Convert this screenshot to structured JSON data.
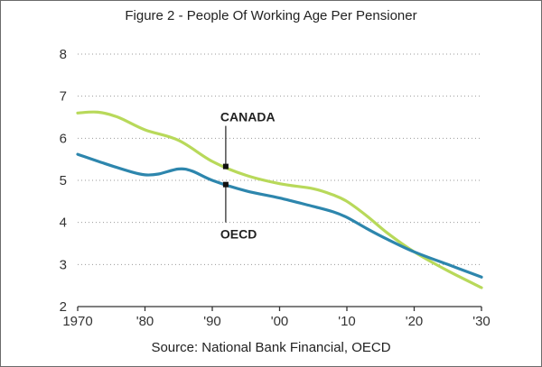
{
  "figure": {
    "title": "Figure 2 - People Of Working Age Per Pensioner",
    "source": "Source: National Bank Financial, OECD"
  },
  "chart_data": {
    "type": "line",
    "title": "Figure 2 - People Of Working Age Per Pensioner",
    "xlabel": "",
    "ylabel": "",
    "xlim": [
      1970,
      2030
    ],
    "ylim": [
      2,
      8
    ],
    "grid": true,
    "x_ticks": [
      1970,
      1980,
      1990,
      2000,
      2010,
      2020,
      2030
    ],
    "x_tick_labels": [
      "1970",
      "'80",
      "'90",
      "'00",
      "'10",
      "'20",
      "'30"
    ],
    "y_ticks": [
      2,
      3,
      4,
      5,
      6,
      7,
      8
    ],
    "y_tick_labels": [
      "2",
      "3",
      "4",
      "5",
      "6",
      "7",
      "8"
    ],
    "series": [
      {
        "name": "CANADA",
        "color": "#b8d95a",
        "x": [
          1970,
          1973,
          1976,
          1980,
          1985,
          1990,
          1995,
          2000,
          2005,
          2008,
          2010,
          2013,
          2016,
          2020,
          2025,
          2030
        ],
        "y": [
          6.6,
          6.62,
          6.5,
          6.2,
          5.95,
          5.45,
          5.12,
          4.92,
          4.8,
          4.65,
          4.5,
          4.15,
          3.75,
          3.3,
          2.85,
          2.45
        ]
      },
      {
        "name": "OECD",
        "color": "#2d86ad",
        "x": [
          1970,
          1974,
          1978,
          1980,
          1982,
          1985,
          1987,
          1990,
          1995,
          2000,
          2005,
          2008,
          2010,
          2013,
          2016,
          2020,
          2025,
          2030
        ],
        "y": [
          5.62,
          5.4,
          5.2,
          5.13,
          5.15,
          5.27,
          5.22,
          5.0,
          4.75,
          4.58,
          4.38,
          4.25,
          4.12,
          3.85,
          3.6,
          3.3,
          3.0,
          2.7
        ]
      }
    ],
    "annotations": [
      {
        "series": "CANADA",
        "text": "CANADA",
        "x": 1992,
        "y": 5.33
      },
      {
        "series": "OECD",
        "text": "OECD",
        "x": 1992,
        "y": 4.9
      }
    ]
  }
}
